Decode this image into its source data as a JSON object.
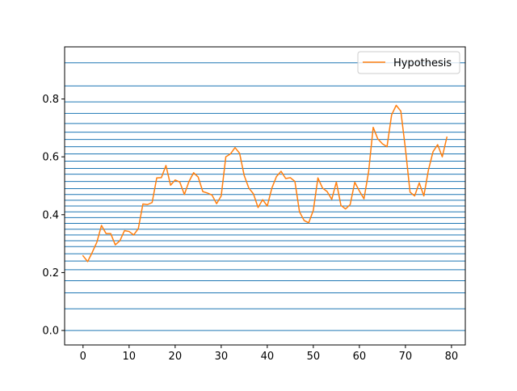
{
  "chart_data": {
    "type": "line",
    "title": "",
    "xlabel": "",
    "ylabel": "",
    "xlim": [
      -4,
      83
    ],
    "ylim": [
      -0.05,
      0.98
    ],
    "grid": false,
    "legend_placement": "top-right",
    "x_ticks": [
      0,
      10,
      20,
      30,
      40,
      50,
      60,
      70,
      80
    ],
    "x_tick_labels": [
      "0",
      "10",
      "20",
      "30",
      "40",
      "50",
      "60",
      "70",
      "80"
    ],
    "y_ticks": [
      0.0,
      0.2,
      0.4,
      0.6,
      0.8
    ],
    "y_tick_labels": [
      "0.0",
      "0.2",
      "0.4",
      "0.6",
      "0.8"
    ],
    "reference_lines": {
      "orientation": "horizontal",
      "color": "#1f77b4",
      "y_values": [
        0.0,
        0.075,
        0.13,
        0.172,
        0.21,
        0.24,
        0.265,
        0.29,
        0.31,
        0.33,
        0.35,
        0.37,
        0.39,
        0.41,
        0.43,
        0.45,
        0.47,
        0.49,
        0.515,
        0.54,
        0.56,
        0.585,
        0.61,
        0.635,
        0.66,
        0.685,
        0.715,
        0.75,
        0.79,
        0.845,
        0.925
      ]
    },
    "series": [
      {
        "name": "Hypothesis",
        "color": "#ff7f0e",
        "x": [
          0,
          1,
          2,
          3,
          4,
          5,
          6,
          7,
          8,
          9,
          10,
          11,
          12,
          13,
          14,
          15,
          16,
          17,
          18,
          19,
          20,
          21,
          22,
          23,
          24,
          25,
          26,
          27,
          28,
          29,
          30,
          31,
          32,
          33,
          34,
          35,
          36,
          37,
          38,
          39,
          40,
          41,
          42,
          43,
          44,
          45,
          46,
          47,
          48,
          49,
          50,
          51,
          52,
          53,
          54,
          55,
          56,
          57,
          58,
          59,
          60,
          61,
          62,
          63,
          64,
          65,
          66,
          67,
          68,
          69,
          70,
          71,
          72,
          73,
          74,
          75,
          76,
          77,
          78,
          79
        ],
        "y": [
          0.258,
          0.238,
          0.27,
          0.305,
          0.363,
          0.335,
          0.335,
          0.296,
          0.31,
          0.345,
          0.342,
          0.33,
          0.352,
          0.437,
          0.435,
          0.442,
          0.527,
          0.528,
          0.57,
          0.502,
          0.52,
          0.513,
          0.47,
          0.515,
          0.545,
          0.53,
          0.48,
          0.475,
          0.468,
          0.438,
          0.465,
          0.6,
          0.61,
          0.632,
          0.612,
          0.535,
          0.492,
          0.472,
          0.425,
          0.452,
          0.43,
          0.492,
          0.532,
          0.55,
          0.525,
          0.528,
          0.515,
          0.41,
          0.38,
          0.372,
          0.415,
          0.527,
          0.492,
          0.48,
          0.453,
          0.513,
          0.432,
          0.42,
          0.435,
          0.512,
          0.482,
          0.455,
          0.548,
          0.702,
          0.662,
          0.645,
          0.635,
          0.745,
          0.778,
          0.758,
          0.628,
          0.478,
          0.465,
          0.51,
          0.465,
          0.555,
          0.618,
          0.642,
          0.6,
          0.668
        ]
      }
    ]
  }
}
